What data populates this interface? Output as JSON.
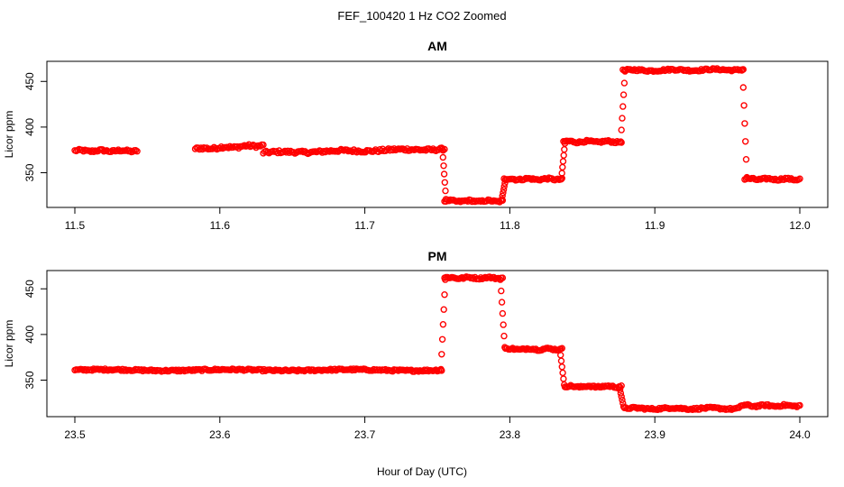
{
  "chart_data": [
    {
      "type": "scatter",
      "page_title": "FEF_100420  1 Hz CO2 Zoomed",
      "title": "AM",
      "xlabel": "Hour of Day (UTC)",
      "ylabel": "Licor ppm",
      "xlim": [
        11.5,
        12.0
      ],
      "ylim": [
        312,
        472
      ],
      "x_ticks": [
        "11.5",
        "11.6",
        "11.7",
        "11.8",
        "11.9",
        "12.0"
      ],
      "y_ticks": [
        "350",
        "400",
        "450"
      ],
      "marker": "open-circle",
      "color": "#ff0000",
      "segments": [
        {
          "x": [
            11.5,
            11.543
          ],
          "y": [
            374,
            374
          ],
          "noise": 1.2
        },
        {
          "x": [
            11.583,
            11.63
          ],
          "y": [
            376,
            380
          ],
          "noise": 1.5
        },
        {
          "x": [
            11.63,
            11.755
          ],
          "y": [
            372,
            376
          ],
          "noise": 1.5
        },
        {
          "x": [
            11.755,
            11.795
          ],
          "y": [
            319,
            319
          ],
          "noise": 1.0
        },
        {
          "x": [
            11.796,
            11.836
          ],
          "y": [
            343,
            343
          ],
          "noise": 1.0
        },
        {
          "x": [
            11.837,
            11.877
          ],
          "y": [
            384,
            384
          ],
          "noise": 1.0
        },
        {
          "x": [
            11.878,
            11.961
          ],
          "y": [
            462,
            463
          ],
          "noise": 1.0
        },
        {
          "x": [
            11.962,
            12.0
          ],
          "y": [
            343,
            343
          ],
          "noise": 1.0
        }
      ],
      "transitions": [
        {
          "x": [
            11.7535,
            11.756
          ],
          "y": [
            376,
            321
          ]
        },
        {
          "x": [
            11.7945,
            11.797
          ],
          "y": [
            321,
            342
          ]
        },
        {
          "x": [
            11.8355,
            11.838
          ],
          "y": [
            343,
            382
          ]
        },
        {
          "x": [
            11.8765,
            11.8795
          ],
          "y": [
            384,
            461
          ]
        },
        {
          "x": [
            11.9605,
            11.9635
          ],
          "y": [
            463,
            345
          ]
        }
      ]
    },
    {
      "type": "scatter",
      "title": "PM",
      "xlabel": "Hour of Day (UTC)",
      "ylabel": "Licor ppm",
      "xlim": [
        23.5,
        24.0
      ],
      "ylim": [
        310,
        470
      ],
      "x_ticks": [
        "23.5",
        "23.6",
        "23.7",
        "23.8",
        "23.9",
        "24.0"
      ],
      "y_ticks": [
        "350",
        "400",
        "450"
      ],
      "marker": "open-circle",
      "color": "#ff0000",
      "segments": [
        {
          "x": [
            23.5,
            23.753
          ],
          "y": [
            361,
            361
          ],
          "noise": 1.0
        },
        {
          "x": [
            23.755,
            23.795
          ],
          "y": [
            462,
            462
          ],
          "noise": 1.0
        },
        {
          "x": [
            23.797,
            23.836
          ],
          "y": [
            384,
            384
          ],
          "noise": 1.0
        },
        {
          "x": [
            23.838,
            23.877
          ],
          "y": [
            343,
            343
          ],
          "noise": 1.0
        },
        {
          "x": [
            23.879,
            23.958
          ],
          "y": [
            319,
            319
          ],
          "noise": 1.0
        },
        {
          "x": [
            23.959,
            24.0
          ],
          "y": [
            322,
            322
          ],
          "noise": 1.0
        }
      ],
      "transitions": [
        {
          "x": [
            23.7525,
            23.7555
          ],
          "y": [
            362,
            460
          ]
        },
        {
          "x": [
            23.7935,
            23.7965
          ],
          "y": [
            460,
            386
          ]
        },
        {
          "x": [
            23.8345,
            23.8375
          ],
          "y": [
            384,
            345
          ]
        },
        {
          "x": [
            23.8755,
            23.8785
          ],
          "y": [
            343,
            321
          ]
        }
      ]
    }
  ]
}
